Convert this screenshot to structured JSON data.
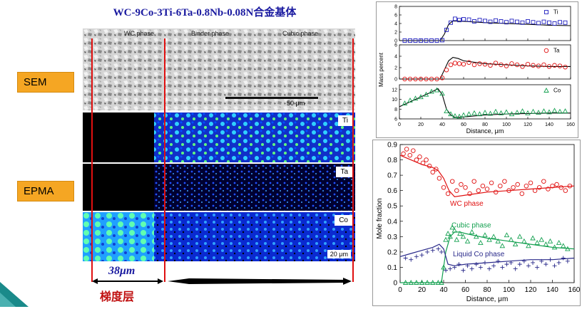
{
  "title": "WC-9Co-3Ti-6Ta-0.8Nb-0.08N合金基体",
  "labels": {
    "sem": "SEM",
    "epma": "EPMA"
  },
  "sem_annotations": [
    "WC phase",
    "Binder phase",
    "Cubic phase"
  ],
  "sem_scale": "50 μm",
  "epma_tags": [
    "Ti",
    "Ta",
    "Co"
  ],
  "epma_scale": "20 μm",
  "thickness": "38μm",
  "gradient_label": "梯度层",
  "colors": {
    "title": "#1a1aa0",
    "label_bg": "#f5a623",
    "red": "#e01010",
    "blue": "#2020c0",
    "green": "#14a050",
    "purple": "#2a2a8a"
  },
  "chart_data": [
    {
      "type": "scatter",
      "ylabel": "Mass percent",
      "xlabel": "Distance, μm",
      "xlim": [
        0,
        160
      ],
      "x_ticks": [
        0,
        20,
        40,
        60,
        80,
        100,
        120,
        140,
        160
      ],
      "panels": [
        {
          "legend": "Ti",
          "marker": "square",
          "color": "#2020c0",
          "ylim": [
            0,
            8
          ],
          "y_ticks": [
            0,
            2,
            4,
            6,
            8
          ],
          "x": [
            5,
            10,
            15,
            20,
            25,
            30,
            35,
            40,
            44,
            48,
            52,
            56,
            60,
            65,
            70,
            75,
            80,
            85,
            90,
            95,
            100,
            105,
            110,
            115,
            120,
            125,
            130,
            135,
            140,
            145,
            150,
            155
          ],
          "y": [
            0,
            0,
            0,
            0,
            0,
            0,
            0,
            0.1,
            2.5,
            4.2,
            5.1,
            4.8,
            5.0,
            4.9,
            4.5,
            4.8,
            4.6,
            4.4,
            4.7,
            4.5,
            4.3,
            4.6,
            4.4,
            4.2,
            4.5,
            4.3,
            4.1,
            4.4,
            4.2,
            4.0,
            4.3,
            4.2
          ],
          "model_x": [
            0,
            38,
            42,
            46,
            50,
            60,
            80,
            100,
            120,
            140,
            160
          ],
          "model_y": [
            0,
            0,
            1.5,
            3.8,
            4.6,
            4.5,
            4.2,
            4.0,
            3.8,
            3.6,
            3.5
          ]
        },
        {
          "legend": "Ta",
          "marker": "circle",
          "color": "#e01010",
          "ylim": [
            0,
            6
          ],
          "y_ticks": [
            0,
            2,
            4,
            6
          ],
          "x": [
            5,
            10,
            15,
            20,
            25,
            30,
            35,
            40,
            44,
            48,
            52,
            56,
            60,
            65,
            70,
            75,
            80,
            85,
            90,
            95,
            100,
            105,
            110,
            115,
            120,
            125,
            130,
            135,
            140,
            145,
            150,
            155
          ],
          "y": [
            0,
            0,
            0,
            0,
            0,
            0,
            0,
            0.2,
            1.6,
            2.5,
            2.8,
            2.7,
            2.6,
            2.9,
            2.5,
            2.7,
            2.6,
            2.4,
            2.8,
            2.5,
            2.3,
            2.7,
            2.5,
            2.2,
            2.6,
            2.4,
            2.3,
            2.5,
            2.2,
            2.4,
            2.3,
            2.1
          ],
          "model_x": [
            0,
            38,
            42,
            46,
            50,
            55,
            60,
            80,
            100,
            120,
            140,
            160
          ],
          "model_y": [
            0,
            0,
            1.6,
            3.2,
            3.8,
            3.6,
            3.2,
            2.7,
            2.5,
            2.3,
            2.2,
            2.2
          ]
        },
        {
          "legend": "Co",
          "marker": "triangle",
          "color": "#14a050",
          "ylim": [
            6,
            13
          ],
          "y_ticks": [
            6,
            8,
            10,
            12
          ],
          "x": [
            5,
            10,
            15,
            20,
            25,
            30,
            35,
            40,
            44,
            48,
            52,
            56,
            60,
            65,
            70,
            75,
            80,
            85,
            90,
            95,
            100,
            105,
            110,
            115,
            120,
            125,
            130,
            135,
            140,
            145,
            150,
            155
          ],
          "y": [
            9.2,
            9.8,
            10.2,
            10.5,
            11.0,
            11.6,
            11.9,
            11.2,
            7.6,
            7.0,
            6.6,
            6.5,
            6.8,
            7.0,
            7.2,
            7.0,
            7.3,
            7.1,
            7.5,
            7.2,
            7.4,
            7.0,
            7.3,
            7.6,
            7.2,
            7.5,
            7.3,
            7.6,
            7.4,
            7.7,
            7.5,
            7.6
          ],
          "model_x": [
            0,
            10,
            20,
            30,
            36,
            40,
            44,
            48,
            52,
            60,
            80,
            100,
            120,
            140,
            160
          ],
          "model_y": [
            8.5,
            9.5,
            10.5,
            11.5,
            12.2,
            11.0,
            8.0,
            6.8,
            6.3,
            6.4,
            6.8,
            7.0,
            7.1,
            7.2,
            7.2
          ]
        }
      ]
    },
    {
      "type": "scatter",
      "xlabel": "Distance, μm",
      "ylabel": "Mole fraction",
      "xlim": [
        0,
        160
      ],
      "ylim": [
        0,
        0.9
      ],
      "x_ticks": [
        0,
        20,
        40,
        60,
        80,
        100,
        120,
        140,
        160
      ],
      "y_ticks": [
        0,
        0.1,
        0.2,
        0.3,
        0.4,
        0.5,
        0.6,
        0.7,
        0.8,
        0.9
      ],
      "series": [
        {
          "name": "WC phase",
          "marker": "circle",
          "color": "#e01010",
          "x": [
            3,
            6,
            9,
            12,
            15,
            18,
            21,
            24,
            27,
            30,
            33,
            36,
            40,
            44,
            48,
            52,
            56,
            60,
            64,
            68,
            72,
            76,
            80,
            84,
            88,
            92,
            96,
            100,
            104,
            108,
            112,
            116,
            120,
            124,
            128,
            132,
            136,
            140,
            144,
            148,
            152,
            156
          ],
          "y": [
            0.84,
            0.87,
            0.83,
            0.86,
            0.8,
            0.82,
            0.78,
            0.8,
            0.76,
            0.72,
            0.74,
            0.68,
            0.62,
            0.58,
            0.66,
            0.6,
            0.64,
            0.62,
            0.58,
            0.66,
            0.6,
            0.63,
            0.61,
            0.65,
            0.59,
            0.63,
            0.66,
            0.6,
            0.62,
            0.64,
            0.58,
            0.63,
            0.65,
            0.6,
            0.62,
            0.66,
            0.61,
            0.63,
            0.64,
            0.62,
            0.6,
            0.63
          ],
          "model_x": [
            0,
            10,
            20,
            30,
            35,
            40,
            45,
            50,
            60,
            80,
            100,
            120,
            140,
            160
          ],
          "model_y": [
            0.83,
            0.8,
            0.77,
            0.75,
            0.73,
            0.68,
            0.6,
            0.56,
            0.57,
            0.59,
            0.6,
            0.61,
            0.62,
            0.63
          ]
        },
        {
          "name": "Cubic   phase",
          "marker": "triangle",
          "color": "#14a050",
          "x": [
            5,
            10,
            15,
            20,
            25,
            30,
            35,
            38,
            40,
            42,
            44,
            46,
            48,
            50,
            52,
            55,
            58,
            62,
            66,
            70,
            74,
            78,
            82,
            86,
            90,
            94,
            98,
            102,
            106,
            110,
            114,
            118,
            122,
            126,
            130,
            134,
            138,
            142,
            146,
            150,
            154
          ],
          "y": [
            0,
            0,
            0,
            0,
            0,
            0,
            0,
            0,
            0.1,
            0.28,
            0.32,
            0.3,
            0.36,
            0.34,
            0.28,
            0.32,
            0.3,
            0.27,
            0.33,
            0.3,
            0.26,
            0.31,
            0.28,
            0.3,
            0.27,
            0.24,
            0.31,
            0.28,
            0.25,
            0.3,
            0.27,
            0.24,
            0.29,
            0.26,
            0.28,
            0.25,
            0.27,
            0.23,
            0.26,
            0.24,
            0.22
          ],
          "model_x": [
            0,
            38,
            42,
            46,
            50,
            55,
            60,
            80,
            100,
            120,
            140,
            160
          ],
          "model_y": [
            0,
            0,
            0.2,
            0.3,
            0.33,
            0.33,
            0.32,
            0.29,
            0.27,
            0.25,
            0.23,
            0.22
          ]
        },
        {
          "name": "Liquid Co phase",
          "marker": "plus",
          "color": "#2a2a8a",
          "x": [
            5,
            10,
            15,
            20,
            25,
            30,
            35,
            38,
            42,
            46,
            50,
            54,
            58,
            62,
            66,
            70,
            74,
            78,
            82,
            86,
            90,
            94,
            98,
            102,
            106,
            110,
            114,
            118,
            122,
            126,
            130,
            134,
            138,
            142,
            146,
            150,
            154
          ],
          "y": [
            0.16,
            0.15,
            0.17,
            0.18,
            0.2,
            0.21,
            0.22,
            0.2,
            0.08,
            0.09,
            0.1,
            0.12,
            0.08,
            0.11,
            0.09,
            0.12,
            0.1,
            0.13,
            0.09,
            0.11,
            0.14,
            0.1,
            0.12,
            0.13,
            0.09,
            0.12,
            0.14,
            0.11,
            0.13,
            0.1,
            0.14,
            0.12,
            0.15,
            0.11,
            0.13,
            0.16,
            0.14
          ],
          "model_x": [
            0,
            10,
            20,
            30,
            36,
            40,
            44,
            50,
            60,
            80,
            100,
            120,
            140,
            160
          ],
          "model_y": [
            0.17,
            0.19,
            0.21,
            0.23,
            0.25,
            0.22,
            0.12,
            0.11,
            0.12,
            0.13,
            0.14,
            0.15,
            0.15,
            0.16
          ]
        }
      ]
    }
  ]
}
